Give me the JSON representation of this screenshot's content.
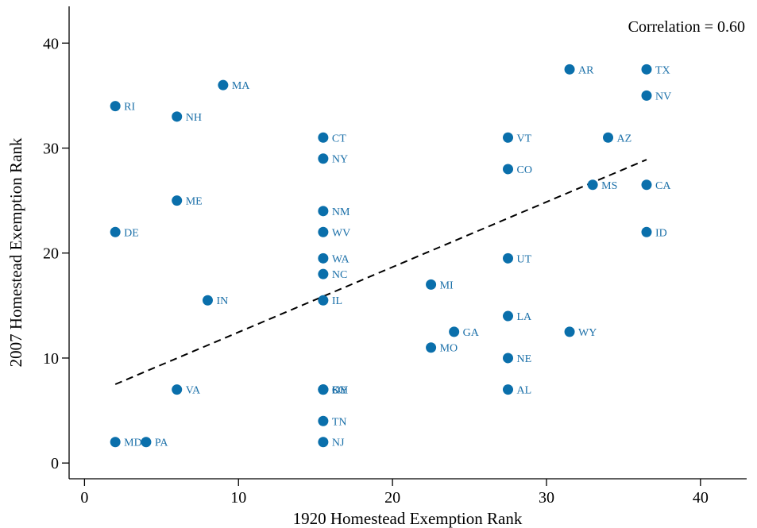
{
  "chart_data": {
    "type": "scatter",
    "xlabel": "1920 Homestead Exemption Rank",
    "ylabel": "2007 Homestead Exemption Rank",
    "xlim": [
      -1,
      43
    ],
    "ylim": [
      -1.5,
      43.5
    ],
    "xticks": [
      0,
      10,
      20,
      30,
      40
    ],
    "yticks": [
      0,
      10,
      20,
      30,
      40
    ],
    "grid": false,
    "annotation": "Correlation = 0.60",
    "marker_color": "#0a6fab",
    "label_color": "#1a6fa8",
    "fit_line": {
      "x": [
        2,
        36.5
      ],
      "y": [
        7.5,
        28.9
      ],
      "style": "dashed",
      "color": "#000000"
    },
    "points": [
      {
        "label": "RI",
        "x": 2,
        "y": 34
      },
      {
        "label": "DE",
        "x": 2,
        "y": 22
      },
      {
        "label": "MD",
        "x": 2,
        "y": 2
      },
      {
        "label": "PA",
        "x": 4,
        "y": 2
      },
      {
        "label": "NH",
        "x": 6,
        "y": 33
      },
      {
        "label": "ME",
        "x": 6,
        "y": 25
      },
      {
        "label": "VA",
        "x": 6,
        "y": 7
      },
      {
        "label": "IN",
        "x": 8,
        "y": 15.5
      },
      {
        "label": "MA",
        "x": 9,
        "y": 36
      },
      {
        "label": "CT",
        "x": 15.5,
        "y": 31
      },
      {
        "label": "NY",
        "x": 15.5,
        "y": 29
      },
      {
        "label": "NM",
        "x": 15.5,
        "y": 24
      },
      {
        "label": "WV",
        "x": 15.5,
        "y": 22
      },
      {
        "label": "WA",
        "x": 15.5,
        "y": 19.5
      },
      {
        "label": "NC",
        "x": 15.5,
        "y": 18
      },
      {
        "label": "IL",
        "x": 15.5,
        "y": 15.5
      },
      {
        "label": "KY",
        "x": 15.5,
        "y": 7
      },
      {
        "label": "SC",
        "x": 15.5,
        "y": 7
      },
      {
        "label": "OH",
        "x": 15.5,
        "y": 7
      },
      {
        "label": "TN",
        "x": 15.5,
        "y": 4
      },
      {
        "label": "NJ",
        "x": 15.5,
        "y": 2
      },
      {
        "label": "MI",
        "x": 22.5,
        "y": 17
      },
      {
        "label": "MO",
        "x": 22.5,
        "y": 11
      },
      {
        "label": "GA",
        "x": 24,
        "y": 12.5
      },
      {
        "label": "VT",
        "x": 27.5,
        "y": 31
      },
      {
        "label": "CO",
        "x": 27.5,
        "y": 28
      },
      {
        "label": "UT",
        "x": 27.5,
        "y": 19.5
      },
      {
        "label": "LA",
        "x": 27.5,
        "y": 14
      },
      {
        "label": "NE",
        "x": 27.5,
        "y": 10
      },
      {
        "label": "AL",
        "x": 27.5,
        "y": 7
      },
      {
        "label": "AR",
        "x": 31.5,
        "y": 37.5
      },
      {
        "label": "WY",
        "x": 31.5,
        "y": 12.5
      },
      {
        "label": "MS",
        "x": 33,
        "y": 26.5
      },
      {
        "label": "AZ",
        "x": 34,
        "y": 31
      },
      {
        "label": "TX",
        "x": 36.5,
        "y": 37.5
      },
      {
        "label": "NV",
        "x": 36.5,
        "y": 35
      },
      {
        "label": "CA",
        "x": 36.5,
        "y": 26.5
      },
      {
        "label": "ID",
        "x": 36.5,
        "y": 22
      }
    ]
  }
}
